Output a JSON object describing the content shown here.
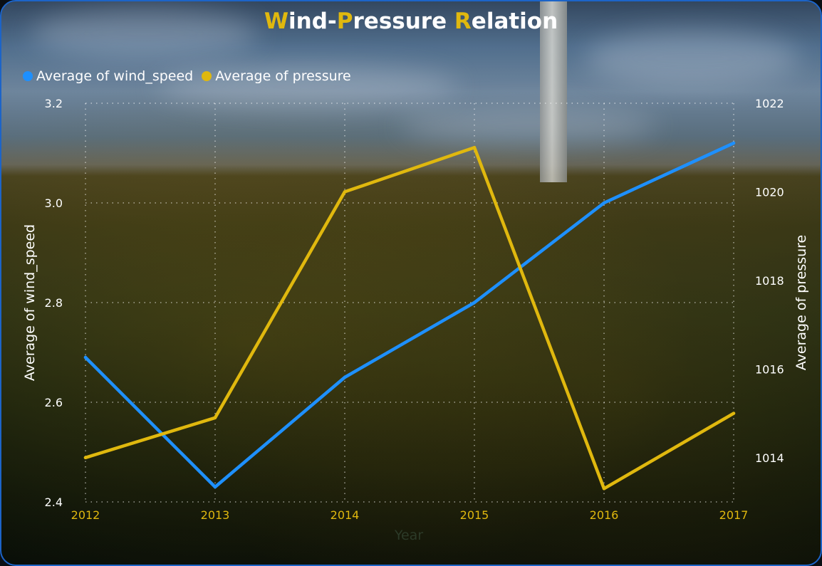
{
  "chart_data": {
    "type": "line",
    "title_parts": [
      {
        "text": "W",
        "cap": true
      },
      {
        "text": "ind-",
        "cap": false
      },
      {
        "text": "P",
        "cap": true
      },
      {
        "text": "ressure ",
        "cap": false
      },
      {
        "text": "R",
        "cap": true
      },
      {
        "text": "elation",
        "cap": false
      }
    ],
    "x": [
      "2012",
      "2013",
      "2014",
      "2015",
      "2016",
      "2017"
    ],
    "xlabel": "Year",
    "ylabel_left": "Average of wind_speed",
    "ylabel_right": "Average of pressure",
    "ylim_left": [
      2.4,
      3.2
    ],
    "ylim_right": [
      1013,
      1022
    ],
    "yticks_left": [
      "2.4",
      "2.6",
      "2.8",
      "3.0",
      "3.2"
    ],
    "yticks_right": [
      "1014",
      "1016",
      "1018",
      "1020",
      "1022"
    ],
    "grid": true,
    "legend_position": "top-left",
    "series": [
      {
        "name": "Average of wind_speed",
        "axis": "left",
        "color": "#1e90ff",
        "values": [
          2.69,
          2.43,
          2.65,
          2.8,
          3.0,
          3.12
        ]
      },
      {
        "name": "Average of pressure",
        "axis": "right",
        "color": "#e0b80e",
        "values": [
          1014.0,
          1014.9,
          1020.0,
          1021.0,
          1013.3,
          1015.0
        ]
      }
    ],
    "colors": {
      "accent": "#e0b80e",
      "frame": "#1c64c8",
      "text": "#ffffff"
    }
  }
}
